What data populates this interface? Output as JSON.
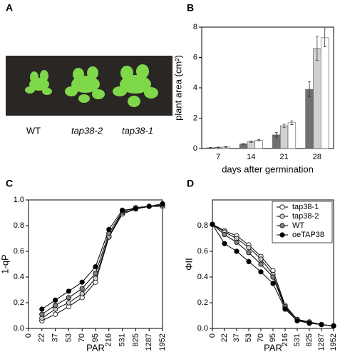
{
  "photo": {
    "letter": "A",
    "labels": [
      "WT",
      "tap38-2",
      "tap38-1"
    ]
  },
  "chart_data": [
    {
      "type": "bar",
      "panel": "B",
      "ylabel": "plant area (cm²)",
      "xlabel": "days after germination",
      "categories": [
        "7",
        "14",
        "21",
        "28"
      ],
      "series": [
        {
          "color": "#707070",
          "values": [
            0.05,
            0.3,
            0.9,
            3.9
          ],
          "errors": [
            0.02,
            0.03,
            0.15,
            0.5
          ]
        },
        {
          "color": "#d0d0d0",
          "values": [
            0.08,
            0.45,
            1.5,
            6.6
          ],
          "errors": [
            0.02,
            0.05,
            0.1,
            0.8
          ]
        },
        {
          "color": "#ffffff",
          "values": [
            0.1,
            0.55,
            1.7,
            7.3
          ],
          "errors": [
            0.02,
            0.05,
            0.12,
            0.6
          ]
        }
      ],
      "ylim": [
        0,
        8
      ],
      "yticks": [
        0,
        2,
        4,
        6,
        8
      ]
    },
    {
      "type": "line",
      "panel": "C",
      "ylabel": "1-qP",
      "xlabel": "PAR",
      "categories": [
        "0",
        "22",
        "37",
        "53",
        "70",
        "95",
        "216",
        "531",
        "825",
        "1287",
        "1952"
      ],
      "series": [
        {
          "color": "#ffffff",
          "values": [
            null,
            0.06,
            0.11,
            0.17,
            0.24,
            0.36,
            0.71,
            0.89,
            0.93,
            0.95,
            0.95
          ]
        },
        {
          "color": "#c8c8c8",
          "values": [
            null,
            0.08,
            0.15,
            0.2,
            0.27,
            0.39,
            0.72,
            0.9,
            0.93,
            0.95,
            0.96
          ]
        },
        {
          "color": "#808080",
          "values": [
            null,
            0.11,
            0.18,
            0.24,
            0.31,
            0.43,
            0.74,
            0.91,
            0.94,
            0.95,
            0.96
          ]
        },
        {
          "color": "#000000",
          "values": [
            null,
            0.15,
            0.22,
            0.29,
            0.36,
            0.48,
            0.77,
            0.92,
            0.93,
            0.95,
            0.97
          ]
        }
      ],
      "ylim": [
        0,
        1
      ],
      "yticks": [
        {
          "value": 0,
          "label": "0.0"
        },
        0.2,
        0.4,
        0.6,
        0.8,
        {
          "value": 1,
          "label": "1.0"
        }
      ]
    },
    {
      "type": "line",
      "panel": "D",
      "ylabel": "ΦII",
      "xlabel": "PAR",
      "legend": "top-right",
      "categories": [
        "0",
        "22",
        "37",
        "53",
        "70",
        "95",
        "216",
        "531",
        "825",
        "1287",
        "1952"
      ],
      "series": [
        {
          "name": "tap38-1",
          "color": "#ffffff",
          "values": [
            0.81,
            0.76,
            0.72,
            0.65,
            0.56,
            0.45,
            0.18,
            0.07,
            0.05,
            0.03,
            0.02
          ]
        },
        {
          "name": "tap38-2",
          "color": "#c8c8c8",
          "values": [
            0.81,
            0.75,
            0.7,
            0.63,
            0.54,
            0.42,
            0.17,
            0.07,
            0.05,
            0.03,
            0.02
          ]
        },
        {
          "name": "WT",
          "color": "#808080",
          "values": [
            0.81,
            0.73,
            0.67,
            0.59,
            0.5,
            0.4,
            0.16,
            0.06,
            0.05,
            0.03,
            0.02
          ]
        },
        {
          "name": "oeTAP38",
          "color": "#000000",
          "values": [
            0.81,
            0.66,
            0.6,
            0.52,
            0.44,
            0.35,
            0.15,
            0.06,
            0.04,
            0.03,
            0.02
          ]
        }
      ],
      "ylim": [
        0,
        1
      ],
      "yticks": [
        {
          "value": 0,
          "label": "0.0"
        },
        0.2,
        0.4,
        0.6,
        0.8
      ]
    }
  ]
}
